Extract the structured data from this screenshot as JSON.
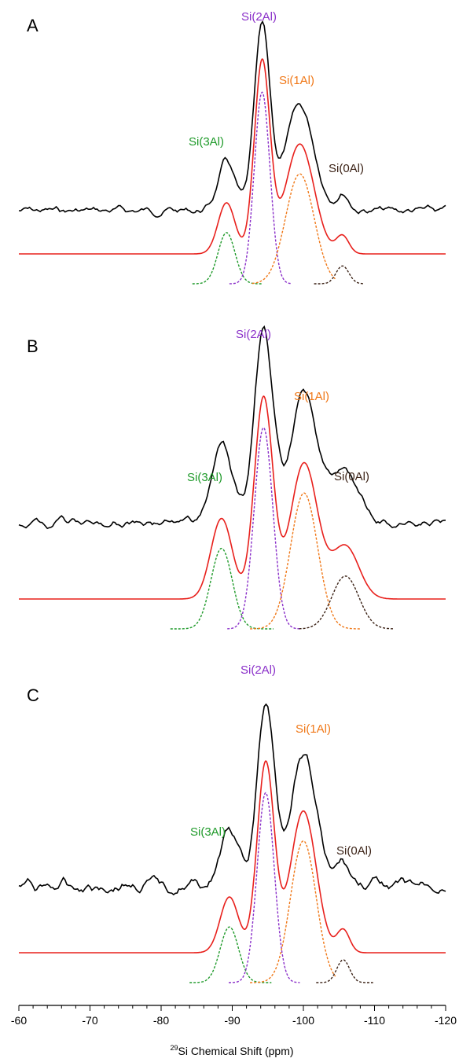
{
  "colors": {
    "spectrum": "#000000",
    "fit": "#e8201c",
    "si3al": "#1f9a2a",
    "si2al": "#8a2fc9",
    "si1al": "#f07818",
    "si0al": "#3b2216"
  },
  "chart_data": {
    "type": "line",
    "xlabel": "Si Chemical Shift (ppm)",
    "xlabel_sup": "29",
    "xlim": [
      -60,
      -120
    ],
    "xticks": [
      -60,
      -70,
      -80,
      -90,
      -100,
      -110,
      -120
    ],
    "xtick_labels": [
      "-60",
      "-70",
      "-80",
      "-90",
      "-100",
      "-110",
      "-120"
    ],
    "panels": [
      {
        "letter": "A",
        "labels": {
          "si3al": "Si(3Al)",
          "si2al": "Si(2Al)",
          "si1al": "Si(1Al)",
          "si0al": "Si(0Al)"
        },
        "series": [
          {
            "key": "si3al",
            "center": -89.2,
            "height": 0.2,
            "width": 1.2,
            "range": [
              -84.4,
              -94.2
            ]
          },
          {
            "key": "si2al",
            "center": -94.2,
            "height": 0.75,
            "width": 1.1,
            "range": [
              -89.6,
              -98.2
            ]
          },
          {
            "key": "si1al",
            "center": -99.5,
            "height": 0.43,
            "width": 2.0,
            "range": [
              -92.8,
              -104.5
            ]
          },
          {
            "key": "si0al",
            "center": -105.5,
            "height": 0.07,
            "width": 0.9,
            "range": [
              -101.5,
              -108.6
            ]
          }
        ]
      },
      {
        "letter": "B",
        "labels": {
          "si3al": "Si(3Al)",
          "si2al": "Si(2Al)",
          "si1al": "Si(1Al)",
          "si0al": "Si(0Al)"
        },
        "series": [
          {
            "key": "si3al",
            "center": -88.5,
            "height": 0.32,
            "width": 1.5,
            "range": [
              -81.3,
              -95.8
            ]
          },
          {
            "key": "si2al",
            "center": -94.4,
            "height": 0.8,
            "width": 1.3,
            "range": [
              -89.3,
              -99.6
            ]
          },
          {
            "key": "si1al",
            "center": -100.1,
            "height": 0.54,
            "width": 1.9,
            "range": [
              -92.5,
              -108.0
            ]
          },
          {
            "key": "si0al",
            "center": -105.9,
            "height": 0.21,
            "width": 1.9,
            "range": [
              -99.4,
              -112.8
            ]
          }
        ]
      },
      {
        "letter": "C",
        "labels": {
          "si3al": "Si(3Al)",
          "si2al": "Si(2Al)",
          "si1al": "Si(1Al)",
          "si0al": "Si(0Al)"
        },
        "series": [
          {
            "key": "si3al",
            "center": -89.6,
            "height": 0.22,
            "width": 1.3,
            "range": [
              -84.0,
              -95.5
            ]
          },
          {
            "key": "si2al",
            "center": -94.7,
            "height": 0.75,
            "width": 1.2,
            "range": [
              -89.5,
              -99.5
            ]
          },
          {
            "key": "si1al",
            "center": -100.0,
            "height": 0.56,
            "width": 1.8,
            "range": [
              -92.5,
              -104.5
            ]
          },
          {
            "key": "si0al",
            "center": -105.6,
            "height": 0.09,
            "width": 0.9,
            "range": [
              -101.8,
              -109.8
            ]
          }
        ]
      }
    ]
  }
}
